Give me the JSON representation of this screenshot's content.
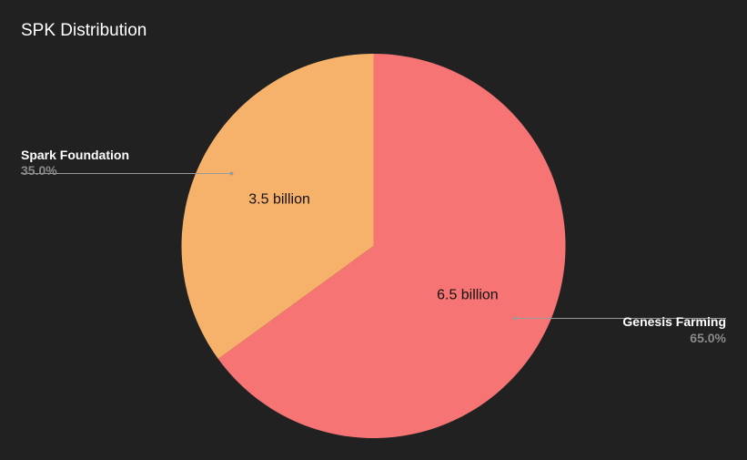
{
  "colors": {
    "background": "#212121",
    "title": "#ffffff",
    "label_name": "#ffffff",
    "label_percent": "#8a8a8a"
  },
  "chart_data": {
    "type": "pie",
    "title": "SPK Distribution",
    "slices": [
      {
        "name": "Genesis Farming",
        "value": 6.5,
        "value_label": "6.5 billion",
        "percent_label": "65.0%",
        "color": "#f77474"
      },
      {
        "name": "Spark Foundation",
        "value": 3.5,
        "value_label": "3.5 billion",
        "percent_label": "35.0%",
        "color": "#f6b26b"
      }
    ],
    "start_angle": "12 o'clock",
    "direction": "clockwise",
    "legend": "none"
  }
}
